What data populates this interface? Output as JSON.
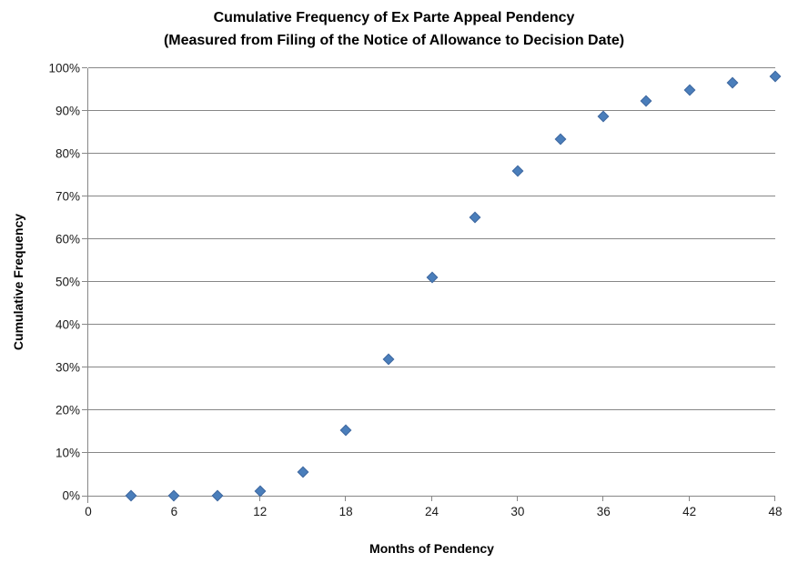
{
  "chart_data": {
    "type": "scatter",
    "title": "Cumulative Frequency of Ex Parte Appeal Pendency",
    "subtitle": "(Measured from Filing of the Notice of Allowance to Decision Date)",
    "xlabel": "Months of Pendency",
    "ylabel": "Cumulative Frequency",
    "x": [
      3,
      6,
      9,
      12,
      15,
      18,
      21,
      24,
      27,
      30,
      33,
      36,
      39,
      42,
      45,
      48
    ],
    "y": [
      0,
      0,
      0,
      1,
      5.5,
      15.3,
      32,
      51,
      65.2,
      76,
      83.3,
      88.7,
      92.4,
      94.9,
      96.6,
      98
    ],
    "xlim": [
      0,
      48
    ],
    "ylim": [
      0,
      100
    ],
    "x_ticks": [
      0,
      6,
      12,
      18,
      24,
      30,
      36,
      42,
      48
    ],
    "y_ticks": [
      0,
      10,
      20,
      30,
      40,
      50,
      60,
      70,
      80,
      90,
      100
    ],
    "y_tick_suffix": "%",
    "grid": "horizontal",
    "legend": "none",
    "marker": {
      "shape": "diamond",
      "fill": "#4a7ebb",
      "border": "#3f689f"
    }
  },
  "colors": {
    "gridline": "#878787",
    "axis": "#878787",
    "tick_text": "#1a1a1a",
    "title_text": "#000000",
    "background": "#ffffff"
  }
}
